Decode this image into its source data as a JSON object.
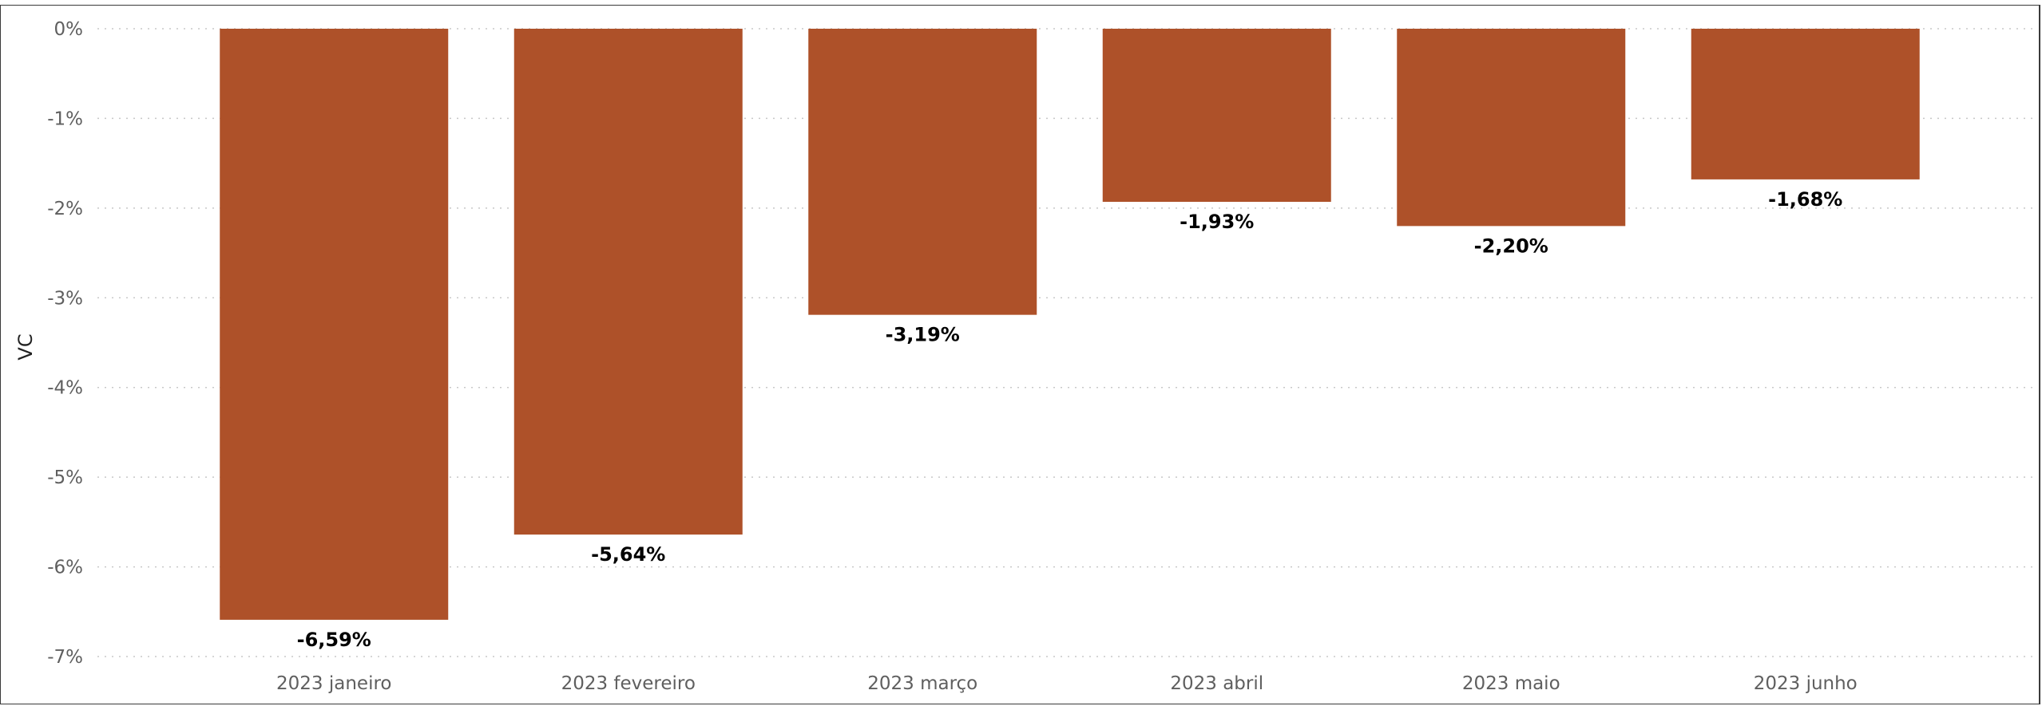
{
  "chart_data": {
    "type": "bar",
    "categories": [
      "2023 janeiro",
      "2023 fevereiro",
      "2023 março",
      "2023 abril",
      "2023 maio",
      "2023 junho"
    ],
    "values": [
      -6.59,
      -5.64,
      -3.19,
      -1.93,
      -2.2,
      -1.68
    ],
    "value_labels": [
      "-6,59%",
      "-5,64%",
      "-3,19%",
      "-1,93%",
      "-2,20%",
      "-1,68%"
    ],
    "ylabel": "VC",
    "xlabel": "",
    "ylim": [
      -7,
      0
    ],
    "y_ticks": [
      0,
      -1,
      -2,
      -3,
      -4,
      -5,
      -6,
      -7
    ],
    "y_tick_labels": [
      "0%",
      "-1%",
      "-2%",
      "-3%",
      "-4%",
      "-5%",
      "-6%",
      "-7%"
    ],
    "grid": true,
    "bar_color": "#ae5129"
  }
}
